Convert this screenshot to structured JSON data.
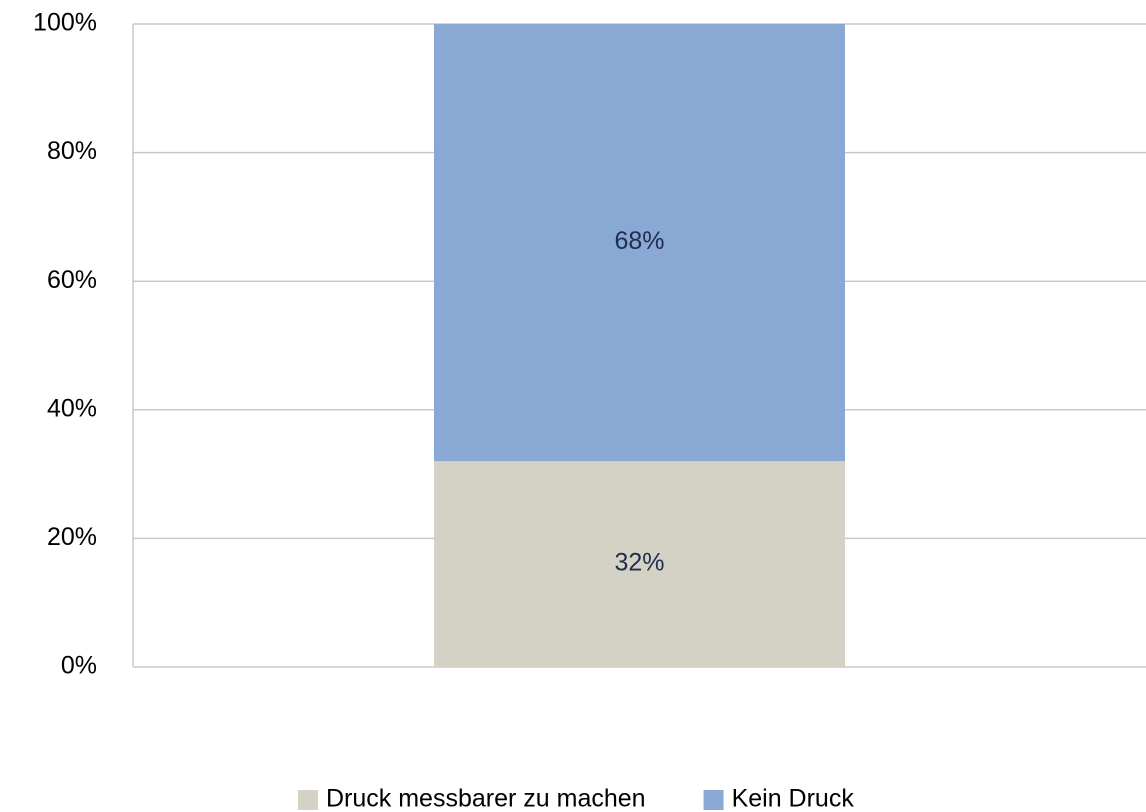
{
  "chart_data": {
    "type": "stacked_bar",
    "categories": [
      null
    ],
    "series": [
      {
        "name": "Druck messbarer zu machen",
        "color": "#d4d2c4",
        "values": [
          32
        ],
        "value_labels": [
          "32%"
        ]
      },
      {
        "name": "Kein Druck",
        "color": "#8aa8d4",
        "values": [
          68
        ],
        "value_labels": [
          "68%"
        ]
      }
    ],
    "ylim": [
      0,
      100
    ],
    "yticks": [
      {
        "value": 0,
        "label": "0%"
      },
      {
        "value": 20,
        "label": "20%"
      },
      {
        "value": 40,
        "label": "40%"
      },
      {
        "value": 60,
        "label": "60%"
      },
      {
        "value": 80,
        "label": "80%"
      },
      {
        "value": 100,
        "label": "100%"
      }
    ],
    "grid": true,
    "legend": "bottom"
  }
}
